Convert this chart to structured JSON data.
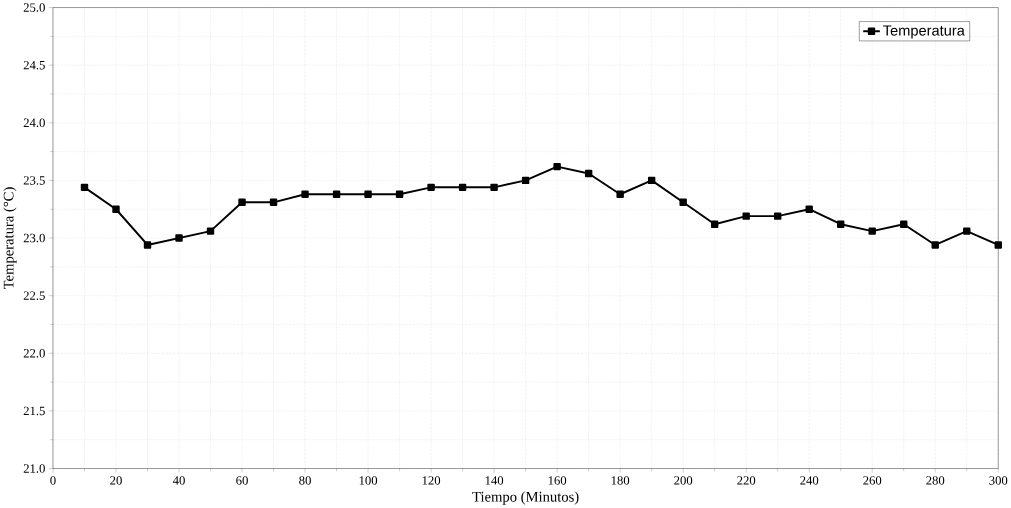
{
  "chart_data": {
    "type": "line",
    "xlabel": "Tiempo (Minutos)",
    "ylabel": "Temperatura (°C)",
    "x": [
      10,
      20,
      30,
      40,
      50,
      60,
      70,
      80,
      90,
      100,
      110,
      120,
      130,
      140,
      150,
      160,
      170,
      180,
      190,
      200,
      210,
      220,
      230,
      240,
      250,
      260,
      270,
      280,
      290,
      300
    ],
    "series": [
      {
        "name": "Temperatura",
        "color": "#000000",
        "values": [
          23.44,
          23.25,
          22.94,
          23.0,
          23.06,
          23.31,
          23.31,
          23.38,
          23.38,
          23.38,
          23.38,
          23.44,
          23.44,
          23.44,
          23.5,
          23.62,
          23.56,
          23.38,
          23.5,
          23.31,
          23.12,
          23.19,
          23.19,
          23.25,
          23.12,
          23.06,
          23.12,
          22.94,
          23.06,
          22.94
        ]
      }
    ],
    "xlim": [
      0,
      300
    ],
    "ylim": [
      21.0,
      25.0
    ],
    "xticks": [
      0,
      20,
      40,
      60,
      80,
      100,
      120,
      140,
      160,
      180,
      200,
      220,
      240,
      260,
      280,
      300
    ],
    "yticks": [
      {
        "value": 21.0,
        "label": "21.0"
      },
      {
        "value": 21.5,
        "label": "21.5"
      },
      {
        "value": 22.0,
        "label": "22.0"
      },
      {
        "value": 22.5,
        "label": "22.5"
      },
      {
        "value": 23.0,
        "label": "23.0"
      },
      {
        "value": 23.5,
        "label": "23.5"
      },
      {
        "value": 24.0,
        "label": "24.0"
      },
      {
        "value": 24.5,
        "label": "24.5"
      },
      {
        "value": 25.0,
        "label": "25.0"
      }
    ],
    "grid": true,
    "legend": "top right",
    "marker": "square",
    "line_style": "solid"
  }
}
